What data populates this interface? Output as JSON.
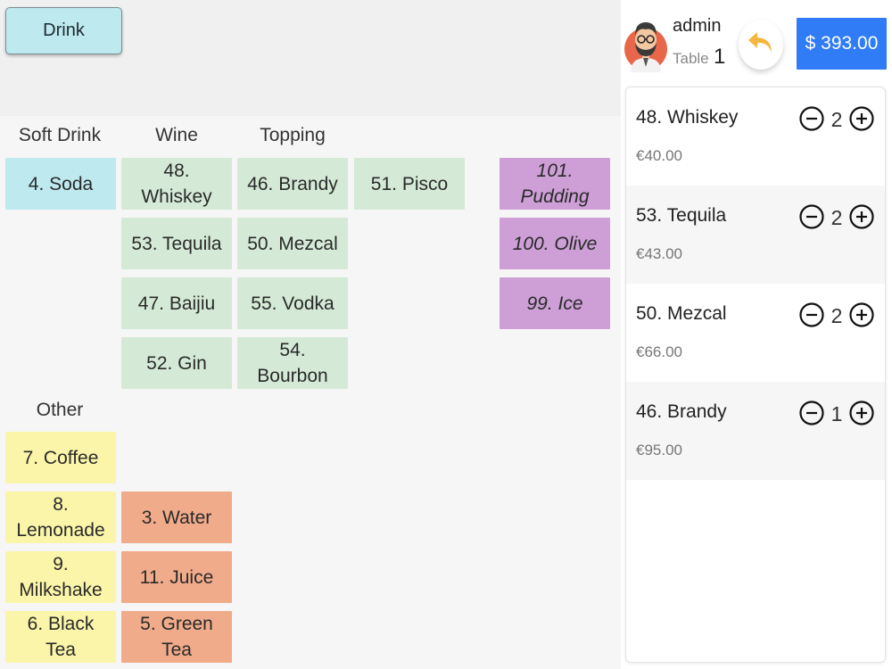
{
  "header": {
    "category_button": "Drink"
  },
  "categories": {
    "soft_drink": "Soft Drink",
    "wine": "Wine",
    "topping": "Topping",
    "other": "Other"
  },
  "tiles": {
    "soda": "4. Soda",
    "whiskey": "48.\nWhiskey",
    "brandy": "46. Brandy",
    "pisco": "51. Pisco",
    "tequila": "53. Tequila",
    "mezcal": "50. Mezcal",
    "baijiu": "47. Baijiu",
    "vodka": "55. Vodka",
    "gin": "52. Gin",
    "bourbon": "54.\nBourbon",
    "pudding": "101.\nPudding",
    "olive": "100. Olive",
    "ice": "99. Ice",
    "coffee": "7. Coffee",
    "lemonade": "8.\nLemonade",
    "water": "3. Water",
    "milkshake": "9.\nMilkshake",
    "juice": "11. Juice",
    "black_tea": "6. Black\nTea",
    "green_tea": "5. Green\nTea"
  },
  "colors": {
    "soft_drink": "#bde9ef",
    "wine": "#d4ead6",
    "topping": "#cd9fd6",
    "other_yellow": "#fbf5a9",
    "other_orange": "#f0ab8a",
    "accent": "#2f7cf6",
    "back_arrow": "#f4b73c"
  },
  "user": {
    "name": "admin",
    "table_label": "Table",
    "table_number": "1"
  },
  "total": "$ 393.00",
  "order": [
    {
      "name": "48. Whiskey",
      "qty": "2",
      "price": "€40.00"
    },
    {
      "name": "53. Tequila",
      "qty": "2",
      "price": "€43.00"
    },
    {
      "name": "50. Mezcal",
      "qty": "2",
      "price": "€66.00"
    },
    {
      "name": "46. Brandy",
      "qty": "1",
      "price": "€95.00"
    }
  ],
  "icons": {
    "back": "undo-arrow-icon",
    "minus": "minus-circle-icon",
    "plus": "plus-circle-icon",
    "avatar": "user-avatar-icon"
  }
}
